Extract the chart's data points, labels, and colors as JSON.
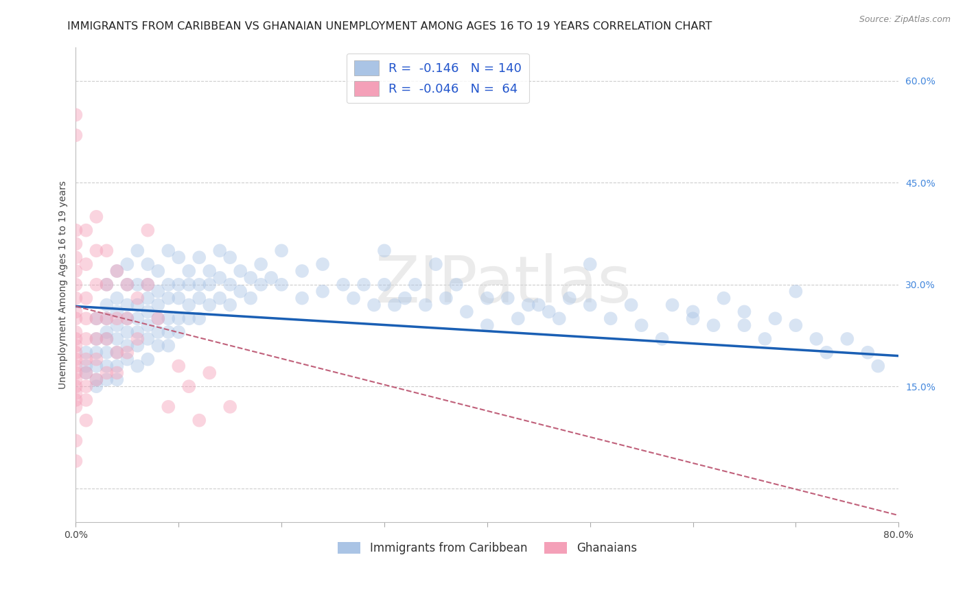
{
  "title": "IMMIGRANTS FROM CARIBBEAN VS GHANAIAN UNEMPLOYMENT AMONG AGES 16 TO 19 YEARS CORRELATION CHART",
  "source": "Source: ZipAtlas.com",
  "ylabel": "Unemployment Among Ages 16 to 19 years",
  "xlim": [
    0.0,
    0.8
  ],
  "ylim": [
    -0.05,
    0.65
  ],
  "xticks": [
    0.0,
    0.1,
    0.2,
    0.3,
    0.4,
    0.5,
    0.6,
    0.7,
    0.8
  ],
  "xticklabels": [
    "0.0%",
    "",
    "",
    "",
    "",
    "",
    "",
    "",
    "80.0%"
  ],
  "ytick_positions": [
    0.0,
    0.15,
    0.3,
    0.45,
    0.6
  ],
  "yticklabels": [
    "",
    "15.0%",
    "30.0%",
    "45.0%",
    "60.0%"
  ],
  "legend_label1": "Immigrants from Caribbean",
  "legend_label2": "Ghanaians",
  "blue_color": "#aac4e5",
  "pink_color": "#f4a0b8",
  "line_blue_color": "#1a5fb4",
  "line_pink_color": "#c0607a",
  "background_color": "#ffffff",
  "watermark": "ZIPatlas",
  "blue_scatter": [
    [
      0.01,
      0.2
    ],
    [
      0.01,
      0.18
    ],
    [
      0.01,
      0.17
    ],
    [
      0.02,
      0.25
    ],
    [
      0.02,
      0.22
    ],
    [
      0.02,
      0.2
    ],
    [
      0.02,
      0.18
    ],
    [
      0.02,
      0.16
    ],
    [
      0.02,
      0.15
    ],
    [
      0.03,
      0.3
    ],
    [
      0.03,
      0.27
    ],
    [
      0.03,
      0.25
    ],
    [
      0.03,
      0.23
    ],
    [
      0.03,
      0.22
    ],
    [
      0.03,
      0.2
    ],
    [
      0.03,
      0.18
    ],
    [
      0.03,
      0.16
    ],
    [
      0.04,
      0.32
    ],
    [
      0.04,
      0.28
    ],
    [
      0.04,
      0.26
    ],
    [
      0.04,
      0.24
    ],
    [
      0.04,
      0.22
    ],
    [
      0.04,
      0.2
    ],
    [
      0.04,
      0.18
    ],
    [
      0.04,
      0.16
    ],
    [
      0.05,
      0.33
    ],
    [
      0.05,
      0.3
    ],
    [
      0.05,
      0.27
    ],
    [
      0.05,
      0.25
    ],
    [
      0.05,
      0.23
    ],
    [
      0.05,
      0.21
    ],
    [
      0.05,
      0.19
    ],
    [
      0.06,
      0.35
    ],
    [
      0.06,
      0.3
    ],
    [
      0.06,
      0.27
    ],
    [
      0.06,
      0.25
    ],
    [
      0.06,
      0.23
    ],
    [
      0.06,
      0.21
    ],
    [
      0.06,
      0.18
    ],
    [
      0.07,
      0.33
    ],
    [
      0.07,
      0.3
    ],
    [
      0.07,
      0.28
    ],
    [
      0.07,
      0.26
    ],
    [
      0.07,
      0.24
    ],
    [
      0.07,
      0.22
    ],
    [
      0.07,
      0.19
    ],
    [
      0.08,
      0.32
    ],
    [
      0.08,
      0.29
    ],
    [
      0.08,
      0.27
    ],
    [
      0.08,
      0.25
    ],
    [
      0.08,
      0.23
    ],
    [
      0.08,
      0.21
    ],
    [
      0.09,
      0.35
    ],
    [
      0.09,
      0.3
    ],
    [
      0.09,
      0.28
    ],
    [
      0.09,
      0.25
    ],
    [
      0.09,
      0.23
    ],
    [
      0.09,
      0.21
    ],
    [
      0.1,
      0.34
    ],
    [
      0.1,
      0.3
    ],
    [
      0.1,
      0.28
    ],
    [
      0.1,
      0.25
    ],
    [
      0.1,
      0.23
    ],
    [
      0.11,
      0.32
    ],
    [
      0.11,
      0.3
    ],
    [
      0.11,
      0.27
    ],
    [
      0.11,
      0.25
    ],
    [
      0.12,
      0.34
    ],
    [
      0.12,
      0.3
    ],
    [
      0.12,
      0.28
    ],
    [
      0.12,
      0.25
    ],
    [
      0.13,
      0.32
    ],
    [
      0.13,
      0.3
    ],
    [
      0.13,
      0.27
    ],
    [
      0.14,
      0.35
    ],
    [
      0.14,
      0.31
    ],
    [
      0.14,
      0.28
    ],
    [
      0.15,
      0.34
    ],
    [
      0.15,
      0.3
    ],
    [
      0.15,
      0.27
    ],
    [
      0.16,
      0.32
    ],
    [
      0.16,
      0.29
    ],
    [
      0.17,
      0.31
    ],
    [
      0.17,
      0.28
    ],
    [
      0.18,
      0.33
    ],
    [
      0.18,
      0.3
    ],
    [
      0.19,
      0.31
    ],
    [
      0.2,
      0.35
    ],
    [
      0.2,
      0.3
    ],
    [
      0.22,
      0.32
    ],
    [
      0.22,
      0.28
    ],
    [
      0.24,
      0.33
    ],
    [
      0.24,
      0.29
    ],
    [
      0.26,
      0.3
    ],
    [
      0.27,
      0.28
    ],
    [
      0.28,
      0.3
    ],
    [
      0.29,
      0.27
    ],
    [
      0.3,
      0.35
    ],
    [
      0.3,
      0.3
    ],
    [
      0.31,
      0.27
    ],
    [
      0.32,
      0.28
    ],
    [
      0.33,
      0.3
    ],
    [
      0.34,
      0.27
    ],
    [
      0.35,
      0.33
    ],
    [
      0.36,
      0.28
    ],
    [
      0.37,
      0.3
    ],
    [
      0.38,
      0.26
    ],
    [
      0.4,
      0.28
    ],
    [
      0.4,
      0.24
    ],
    [
      0.42,
      0.28
    ],
    [
      0.43,
      0.25
    ],
    [
      0.44,
      0.27
    ],
    [
      0.45,
      0.27
    ],
    [
      0.46,
      0.26
    ],
    [
      0.47,
      0.25
    ],
    [
      0.48,
      0.28
    ],
    [
      0.5,
      0.33
    ],
    [
      0.5,
      0.27
    ],
    [
      0.52,
      0.25
    ],
    [
      0.54,
      0.27
    ],
    [
      0.55,
      0.24
    ],
    [
      0.57,
      0.22
    ],
    [
      0.58,
      0.27
    ],
    [
      0.6,
      0.26
    ],
    [
      0.6,
      0.25
    ],
    [
      0.62,
      0.24
    ],
    [
      0.63,
      0.28
    ],
    [
      0.65,
      0.26
    ],
    [
      0.65,
      0.24
    ],
    [
      0.67,
      0.22
    ],
    [
      0.68,
      0.25
    ],
    [
      0.7,
      0.29
    ],
    [
      0.7,
      0.24
    ],
    [
      0.72,
      0.22
    ],
    [
      0.73,
      0.2
    ],
    [
      0.75,
      0.22
    ],
    [
      0.77,
      0.2
    ],
    [
      0.78,
      0.18
    ]
  ],
  "pink_scatter": [
    [
      0.0,
      0.55
    ],
    [
      0.0,
      0.52
    ],
    [
      0.0,
      0.38
    ],
    [
      0.0,
      0.36
    ],
    [
      0.0,
      0.34
    ],
    [
      0.0,
      0.32
    ],
    [
      0.0,
      0.3
    ],
    [
      0.0,
      0.28
    ],
    [
      0.0,
      0.26
    ],
    [
      0.0,
      0.25
    ],
    [
      0.0,
      0.23
    ],
    [
      0.0,
      0.22
    ],
    [
      0.0,
      0.21
    ],
    [
      0.0,
      0.2
    ],
    [
      0.0,
      0.19
    ],
    [
      0.0,
      0.18
    ],
    [
      0.0,
      0.17
    ],
    [
      0.0,
      0.16
    ],
    [
      0.0,
      0.15
    ],
    [
      0.0,
      0.14
    ],
    [
      0.0,
      0.13
    ],
    [
      0.0,
      0.12
    ],
    [
      0.0,
      0.07
    ],
    [
      0.0,
      0.04
    ],
    [
      0.01,
      0.38
    ],
    [
      0.01,
      0.33
    ],
    [
      0.01,
      0.28
    ],
    [
      0.01,
      0.25
    ],
    [
      0.01,
      0.22
    ],
    [
      0.01,
      0.19
    ],
    [
      0.01,
      0.17
    ],
    [
      0.01,
      0.15
    ],
    [
      0.01,
      0.13
    ],
    [
      0.01,
      0.1
    ],
    [
      0.02,
      0.4
    ],
    [
      0.02,
      0.35
    ],
    [
      0.02,
      0.3
    ],
    [
      0.02,
      0.25
    ],
    [
      0.02,
      0.22
    ],
    [
      0.02,
      0.19
    ],
    [
      0.02,
      0.16
    ],
    [
      0.03,
      0.35
    ],
    [
      0.03,
      0.3
    ],
    [
      0.03,
      0.25
    ],
    [
      0.03,
      0.22
    ],
    [
      0.03,
      0.17
    ],
    [
      0.04,
      0.32
    ],
    [
      0.04,
      0.25
    ],
    [
      0.04,
      0.2
    ],
    [
      0.04,
      0.17
    ],
    [
      0.05,
      0.3
    ],
    [
      0.05,
      0.25
    ],
    [
      0.05,
      0.2
    ],
    [
      0.06,
      0.28
    ],
    [
      0.06,
      0.22
    ],
    [
      0.07,
      0.38
    ],
    [
      0.07,
      0.3
    ],
    [
      0.08,
      0.25
    ],
    [
      0.09,
      0.12
    ],
    [
      0.1,
      0.18
    ],
    [
      0.11,
      0.15
    ],
    [
      0.12,
      0.1
    ],
    [
      0.13,
      0.17
    ],
    [
      0.15,
      0.12
    ]
  ],
  "blue_line_x": [
    0.0,
    0.8
  ],
  "blue_line_y": [
    0.268,
    0.195
  ],
  "pink_line_x": [
    0.0,
    0.8
  ],
  "pink_line_y": [
    0.268,
    -0.04
  ],
  "grid_color": "#c8c8c8",
  "title_fontsize": 11.5,
  "axis_label_fontsize": 10,
  "tick_fontsize": 10,
  "scatter_size": 200,
  "scatter_alpha": 0.45
}
